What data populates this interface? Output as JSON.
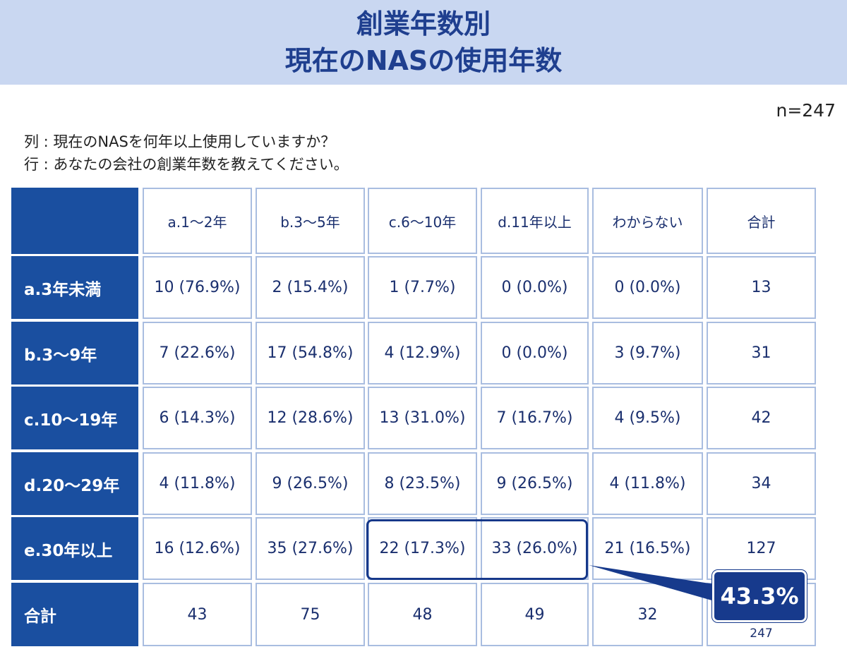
{
  "header": {
    "title_line1": "創業年数別",
    "title_line2": "現在のNASの使用年数"
  },
  "sample_size": "n=247",
  "questions": {
    "column": "列 : 現在のNASを何年以上使用していますか？",
    "row": "行 : あなたの会社の創業年数を教えてください。"
  },
  "chart_data": {
    "type": "table",
    "columns": [
      "a.1～2年",
      "b.3～5年",
      "c.6～10年",
      "d.11年以上",
      "わからない",
      "合計"
    ],
    "rows": [
      {
        "label": "a.3年未満",
        "cells": [
          "10 (76.9%)",
          "2 (15.4%)",
          "1 (7.7%)",
          "0 (0.0%)",
          "0 (0.0%)",
          "13"
        ]
      },
      {
        "label": "b.3～9年",
        "cells": [
          "7 (22.6%)",
          "17 (54.8%)",
          "4 (12.9%)",
          "0 (0.0%)",
          "3 (9.7%)",
          "31"
        ]
      },
      {
        "label": "c.10～19年",
        "cells": [
          "6 (14.3%)",
          "12 (28.6%)",
          "13 (31.0%)",
          "7 (16.7%)",
          "4 (9.5%)",
          "42"
        ]
      },
      {
        "label": "d.20～29年",
        "cells": [
          "4 (11.8%)",
          "9 (26.5%)",
          "8 (23.5%)",
          "9 (26.5%)",
          "4 (11.8%)",
          "34"
        ]
      },
      {
        "label": "e.30年以上",
        "cells": [
          "16 (12.6%)",
          "35 (27.6%)",
          "22 (17.3%)",
          "33 (26.0%)",
          "21 (16.5%)",
          "127"
        ]
      },
      {
        "label": "合計",
        "cells": [
          "43",
          "75",
          "48",
          "49",
          "32",
          "247"
        ]
      }
    ],
    "highlight": {
      "row": 4,
      "columns": [
        2,
        3
      ],
      "callout": "43.3%"
    },
    "colors": {
      "header_band": "#c9d7f1",
      "row_header": "#1a4fa0",
      "cell_border": "#a9bde0",
      "text": "#1a2f6e",
      "callout": "#173a8c"
    }
  }
}
